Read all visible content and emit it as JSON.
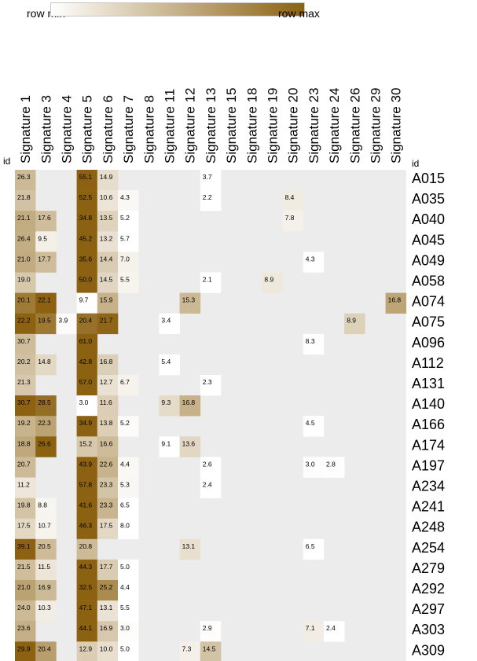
{
  "legend": {
    "min_label": "row min",
    "max_label": "row max",
    "color_min": "#ffffff",
    "color_max": "#8c6212"
  },
  "colors": {
    "empty_cell": "#ececec",
    "low": "#ffffff",
    "high": "#8c6212"
  },
  "chart_data": {
    "type": "heatmap",
    "color_scale": "row-normalized: row min = white, row max = dark brown",
    "row_header": "id",
    "columns": [
      "Signature 1",
      "Signature 3",
      "Signature 4",
      "Signature 5",
      "Signature 6",
      "Signature 7",
      "Signature 8",
      "Signature 11",
      "Signature 12",
      "Signature 13",
      "Signature 15",
      "Signature 18",
      "Signature 19",
      "Signature 20",
      "Signature 23",
      "Signature 24",
      "Signature 26",
      "Signature 29",
      "Signature 30"
    ],
    "rows": [
      "A015",
      "A035",
      "A040",
      "A045",
      "A049",
      "A058",
      "A074",
      "A075",
      "A096",
      "A112",
      "A131",
      "A140",
      "A166",
      "A174",
      "A197",
      "A234",
      "A241",
      "A248",
      "A254",
      "A279",
      "A292",
      "A297",
      "A303",
      "A309"
    ],
    "values": [
      [
        26.3,
        null,
        null,
        55.1,
        14.9,
        null,
        null,
        null,
        null,
        3.7,
        null,
        null,
        null,
        null,
        null,
        null,
        null,
        null,
        null
      ],
      [
        21.8,
        null,
        null,
        52.5,
        10.6,
        4.3,
        null,
        null,
        null,
        2.2,
        null,
        null,
        null,
        8.4,
        null,
        null,
        null,
        null,
        null
      ],
      [
        21.1,
        17.6,
        null,
        34.8,
        13.5,
        5.2,
        null,
        null,
        null,
        null,
        null,
        null,
        null,
        7.8,
        null,
        null,
        null,
        null,
        null
      ],
      [
        26.4,
        9.5,
        null,
        45.2,
        13.2,
        5.7,
        null,
        null,
        null,
        null,
        null,
        null,
        null,
        null,
        null,
        null,
        null,
        null,
        null
      ],
      [
        21.0,
        17.7,
        null,
        35.6,
        14.4,
        7.0,
        null,
        null,
        null,
        null,
        null,
        null,
        null,
        null,
        4.3,
        null,
        null,
        null,
        null
      ],
      [
        19.0,
        null,
        null,
        50.0,
        14.5,
        5.5,
        null,
        null,
        null,
        2.1,
        null,
        null,
        8.9,
        null,
        null,
        null,
        null,
        null,
        null
      ],
      [
        20.1,
        22.1,
        null,
        9.7,
        15.9,
        null,
        null,
        null,
        15.3,
        null,
        null,
        null,
        null,
        null,
        null,
        null,
        null,
        null,
        16.8
      ],
      [
        22.2,
        19.5,
        3.9,
        20.4,
        21.7,
        null,
        null,
        3.4,
        null,
        null,
        null,
        null,
        null,
        null,
        null,
        null,
        8.9,
        null,
        null
      ],
      [
        30.7,
        null,
        null,
        61.0,
        null,
        null,
        null,
        null,
        null,
        null,
        null,
        null,
        null,
        null,
        8.3,
        null,
        null,
        null,
        null
      ],
      [
        20.2,
        14.8,
        null,
        42.8,
        16.8,
        null,
        null,
        5.4,
        null,
        null,
        null,
        null,
        null,
        null,
        null,
        null,
        null,
        null,
        null
      ],
      [
        21.3,
        null,
        null,
        57.0,
        12.7,
        6.7,
        null,
        null,
        null,
        2.3,
        null,
        null,
        null,
        null,
        null,
        null,
        null,
        null,
        null
      ],
      [
        30.7,
        28.5,
        null,
        3.0,
        11.6,
        null,
        null,
        9.3,
        16.8,
        null,
        null,
        null,
        null,
        null,
        null,
        null,
        null,
        null,
        null
      ],
      [
        19.2,
        22.3,
        null,
        34.9,
        13.8,
        5.2,
        null,
        null,
        null,
        null,
        null,
        null,
        null,
        null,
        4.5,
        null,
        null,
        null,
        null
      ],
      [
        18.8,
        26.6,
        null,
        15.2,
        16.6,
        null,
        null,
        9.1,
        13.6,
        null,
        null,
        null,
        null,
        null,
        null,
        null,
        null,
        null,
        null
      ],
      [
        20.7,
        null,
        null,
        43.9,
        22.6,
        4.4,
        null,
        null,
        null,
        2.6,
        null,
        null,
        null,
        null,
        3.0,
        2.8,
        null,
        null,
        null
      ],
      [
        11.2,
        null,
        null,
        57.8,
        23.3,
        5.3,
        null,
        null,
        null,
        2.4,
        null,
        null,
        null,
        null,
        null,
        null,
        null,
        null,
        null
      ],
      [
        19.8,
        8.8,
        null,
        41.6,
        23.3,
        6.5,
        null,
        null,
        null,
        null,
        null,
        null,
        null,
        null,
        null,
        null,
        null,
        null,
        null
      ],
      [
        17.5,
        10.7,
        null,
        46.3,
        17.5,
        8.0,
        null,
        null,
        null,
        null,
        null,
        null,
        null,
        null,
        null,
        null,
        null,
        null,
        null
      ],
      [
        39.1,
        20.5,
        null,
        20.8,
        null,
        null,
        null,
        null,
        13.1,
        null,
        null,
        null,
        null,
        null,
        6.5,
        null,
        null,
        null,
        null
      ],
      [
        21.5,
        11.5,
        null,
        44.3,
        17.7,
        5.0,
        null,
        null,
        null,
        null,
        null,
        null,
        null,
        null,
        null,
        null,
        null,
        null,
        null
      ],
      [
        21.0,
        16.9,
        null,
        32.5,
        25.2,
        4.4,
        null,
        null,
        null,
        null,
        null,
        null,
        null,
        null,
        null,
        null,
        null,
        null,
        null
      ],
      [
        24.0,
        10.3,
        null,
        47.1,
        13.1,
        5.5,
        null,
        null,
        null,
        null,
        null,
        null,
        null,
        null,
        null,
        null,
        null,
        null,
        null
      ],
      [
        23.6,
        null,
        null,
        44.1,
        16.9,
        3.0,
        null,
        null,
        null,
        2.9,
        null,
        null,
        null,
        null,
        7.1,
        2.4,
        null,
        null,
        null
      ],
      [
        29.9,
        20.4,
        null,
        12.9,
        10.0,
        5.0,
        null,
        null,
        7.3,
        14.5,
        null,
        null,
        null,
        null,
        null,
        null,
        null,
        null,
        null
      ]
    ]
  }
}
